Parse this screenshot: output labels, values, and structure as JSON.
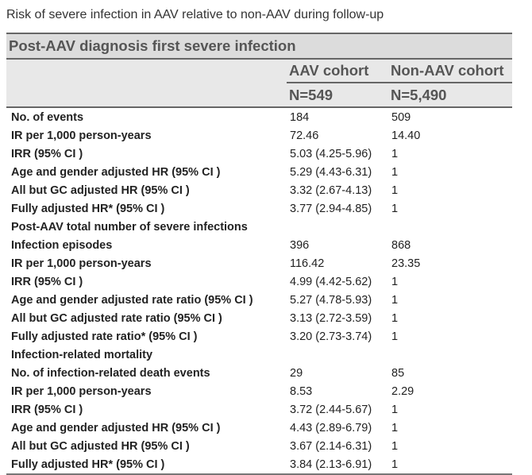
{
  "caption": "Risk of severe infection in AAV relative to non-AAV during follow-up",
  "table": {
    "title": "Post-AAV diagnosis first severe infection",
    "columns": [
      "AAV cohort",
      "Non-AAV cohort"
    ],
    "column_n": [
      "N=549",
      "N=5,490"
    ],
    "rows": [
      {
        "label": "No. of events",
        "aav": "184",
        "non": "509"
      },
      {
        "label": "IR per 1,000 person-years",
        "aav": "72.46",
        "non": "14.40"
      },
      {
        "label": "IRR (95% CI )",
        "aav": "5.03 (4.25-5.96)",
        "non": "1"
      },
      {
        "label": "Age and gender adjusted HR (95% CI )",
        "aav": "5.29 (4.43-6.31)",
        "non": "1"
      },
      {
        "label": "All but GC adjusted HR (95% CI )",
        "aav": "3.32 (2.67-4.13)",
        "non": "1"
      },
      {
        "label": "Fully adjusted HR* (95% CI )",
        "aav": "3.77 (2.94-4.85)",
        "non": "1"
      },
      {
        "label": "Post-AAV total number of severe infections",
        "aav": "",
        "non": ""
      },
      {
        "label": "Infection episodes",
        "aav": "396",
        "non": "868"
      },
      {
        "label": "IR per 1,000 person-years",
        "aav": "116.42",
        "non": "23.35"
      },
      {
        "label": "IRR (95% CI )",
        "aav": "4.99 (4.42-5.62)",
        "non": "1"
      },
      {
        "label": "Age and gender adjusted rate ratio (95% CI )",
        "aav": "5.27 (4.78-5.93)",
        "non": "1"
      },
      {
        "label": "All but GC adjusted rate ratio (95% CI )",
        "aav": "3.13 (2.72-3.59)",
        "non": "1"
      },
      {
        "label": "Fully adjusted rate ratio* (95% CI )",
        "aav": "3.20 (2.73-3.74)",
        "non": "1"
      },
      {
        "label": "Infection-related mortality",
        "aav": "",
        "non": ""
      },
      {
        "label": "No. of infection-related death events",
        "aav": "29",
        "non": "85"
      },
      {
        "label": "IR per 1,000 person-years",
        "aav": "8.53",
        "non": "2.29"
      },
      {
        "label": "IRR (95% CI )",
        "aav": "3.72 (2.44-5.67)",
        "non": "1"
      },
      {
        "label": "Age and gender adjusted HR (95% CI )",
        "aav": "4.43 (2.89-6.79)",
        "non": "1"
      },
      {
        "label": "All but GC adjusted HR (95% CI )",
        "aav": "3.67 (2.14-6.31)",
        "non": "1"
      },
      {
        "label": "Fully adjusted HR* (95% CI )",
        "aav": "3.84 (2.13-6.91)",
        "non": "1"
      }
    ]
  }
}
